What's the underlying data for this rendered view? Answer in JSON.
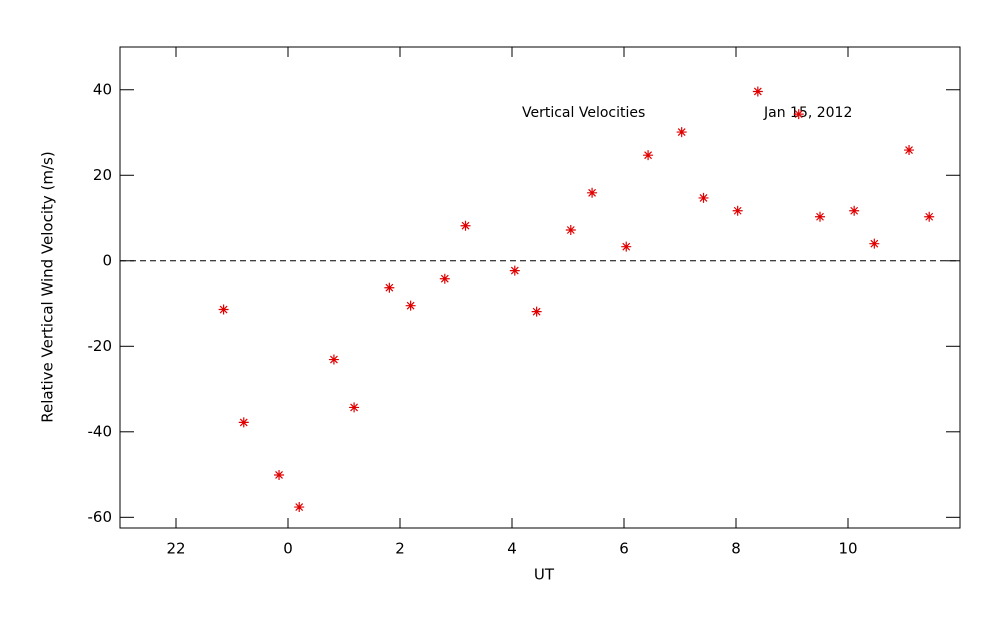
{
  "chart_data": {
    "type": "scatter",
    "xlabel": "UT",
    "ylabel": "Relative Vertical Wind Velocity (m/s)",
    "annotations": [
      "Vertical Velocities",
      "Jan 15, 2012"
    ],
    "xlim": [
      -3,
      12
    ],
    "ylim": [
      -62.5,
      50
    ],
    "xticks": [
      {
        "value": -2,
        "label": "22"
      },
      0,
      2,
      4,
      6,
      8,
      10
    ],
    "yticks": [
      -60,
      -40,
      -20,
      0,
      20,
      40
    ],
    "reference_line": 0,
    "color": "#e00000",
    "x": [
      -1.15,
      -0.79,
      -0.16,
      0.2,
      0.82,
      1.18,
      1.81,
      2.19,
      2.8,
      3.17,
      4.05,
      4.44,
      5.05,
      5.43,
      6.04,
      6.43,
      7.03,
      7.42,
      8.03,
      8.39,
      9.12,
      9.5,
      10.11,
      10.47,
      11.09,
      11.45
    ],
    "values": [
      -11.4,
      -37.8,
      -50.1,
      -57.6,
      -23.1,
      -34.3,
      -6.3,
      -10.5,
      -4.2,
      8.2,
      -2.3,
      -11.9,
      7.2,
      15.9,
      3.3,
      24.7,
      30.1,
      14.7,
      11.7,
      39.6,
      34.3,
      10.3,
      11.7,
      4.0,
      25.9,
      10.3
    ]
  }
}
